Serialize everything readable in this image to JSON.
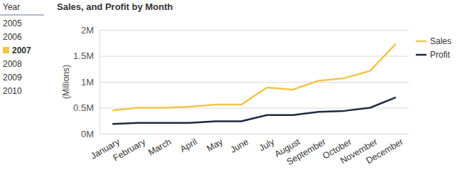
{
  "chart_data": {
    "type": "line",
    "title": "Sales, and Profit by Month",
    "y_label": "(Millions)",
    "categories": [
      "January",
      "February",
      "March",
      "April",
      "May",
      "June",
      "July",
      "August",
      "September",
      "October",
      "November",
      "December"
    ],
    "series": [
      {
        "name": "Sales",
        "color": "#f2c54b",
        "values": [
          0.45,
          0.5,
          0.5,
          0.52,
          0.56,
          0.56,
          0.89,
          0.85,
          1.02,
          1.07,
          1.21,
          1.73
        ]
      },
      {
        "name": "Profit",
        "color": "#1f2940",
        "values": [
          0.19,
          0.21,
          0.21,
          0.21,
          0.24,
          0.24,
          0.36,
          0.36,
          0.42,
          0.44,
          0.5,
          0.7
        ]
      }
    ],
    "ylim": [
      0,
      2
    ],
    "yticks": [
      {
        "value": 0,
        "label": "0M"
      },
      {
        "value": 0.5,
        "label": "0.5M"
      },
      {
        "value": 1,
        "label": "1M"
      },
      {
        "value": 1.5,
        "label": "1.5M"
      },
      {
        "value": 2,
        "label": "2M"
      }
    ],
    "grid": true,
    "legend": "right"
  },
  "slicer": {
    "title": "Year",
    "items": [
      "2005",
      "2006",
      "2007",
      "2008",
      "2009",
      "2010"
    ],
    "selected": "2007"
  }
}
